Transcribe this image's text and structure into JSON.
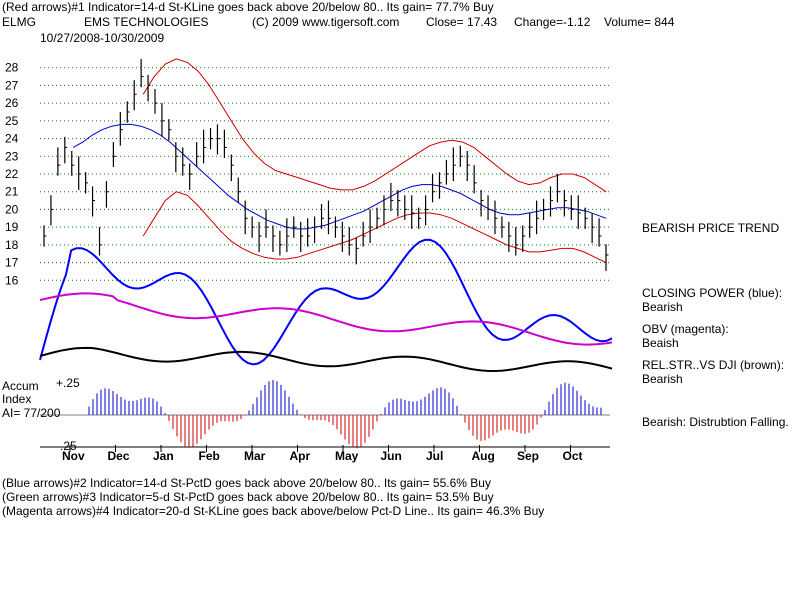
{
  "header": {
    "line1_red": "(Red arrows)#1 Indicator=14-d St-KLine goes back above 20/below 80.. Its gain= 77.7% Buy",
    "symbol": "ELMG",
    "company": "EMS TECHNOLOGIES",
    "copyright": "(C) 2009 www.tigersoft.com",
    "close": "Close=  17.43",
    "change": "Change=-1.12",
    "volume": "Volume= 844",
    "date_range": "10/27/2008-10/30/2009"
  },
  "legend_right": {
    "trend": "BEARISH PRICE TREND",
    "closing_power_label": "CLOSING POWER (blue):",
    "closing_power_value": "Bearish",
    "obv_label": "OBV (magenta):",
    "obv_value": "Beaish",
    "relstr_label": "REL.STR..VS DJI (brown):",
    "relstr_value": "Bearish",
    "accum_note": "Bearish:  Distrubtion Falling."
  },
  "accum_panel": {
    "label_line1": "Accum",
    "label_line2": "Index",
    "ai_value": "AI= 77/200",
    "top_tick": "+.25",
    "bottom_tick": "-.25"
  },
  "footer": {
    "blue_arrows": "(Blue arrows)#2 Indicator=14-d St-PctD goes back above 20/below 80.. Its gain= 55.6% Buy",
    "green_arrows": "(Green arrows)#3 Indicator=5-d St-PctD goes back above 20/below 80.. Its gain= 53.5% Buy",
    "magenta_arrows": "(Magenta arrows)#4 Indicator=20-d St-KLine goes back above/below Pct-D Line.. Its gain= 46.3% Buy"
  },
  "colors": {
    "price": "#000000",
    "bands": "#cc0000",
    "ma": "#0000cc",
    "closing_power": "#0000ff",
    "obv": "#cc00cc",
    "relstr": "#000000",
    "grid": "#008000",
    "accum_pos": "#0000cc",
    "accum_neg": "#cc0000"
  },
  "chart_data": {
    "type": "line",
    "y_ticks": [
      28,
      27,
      26,
      25,
      24,
      23,
      22,
      21,
      20,
      19,
      18,
      17,
      16
    ],
    "x_ticks": [
      "Nov",
      "Dec",
      "Jan",
      "Feb",
      "Mar",
      "Apr",
      "May",
      "Jun",
      "Jul",
      "Aug",
      "Sep",
      "Oct"
    ],
    "ylim": [
      15,
      29
    ],
    "grid": true,
    "series": [
      {
        "values": [
          18.5,
          20,
          22.5,
          23.5,
          22.5,
          22,
          21.5,
          20.5,
          18,
          21,
          23,
          24.5,
          25.5,
          26.5,
          27.5,
          27,
          26,
          25,
          24.5,
          23,
          22.5,
          22,
          23,
          23.5,
          24,
          24,
          23.5,
          22.5,
          21,
          19.5,
          19,
          18.5,
          19,
          18.5,
          18,
          18.5,
          19,
          18.5,
          18.5,
          19,
          19.5,
          19.5,
          19,
          18.5,
          18,
          17.8,
          18.5,
          19,
          19.5,
          20,
          20.5,
          20.5,
          20,
          19.8,
          19.5,
          20,
          21,
          21.5,
          22,
          22.5,
          23,
          22.5,
          21.5,
          20.5,
          20,
          19.5,
          19,
          18.5,
          18,
          18.5,
          19,
          19.5,
          20,
          20.5,
          21,
          20.5,
          20,
          19.8,
          19.5,
          19,
          18.5,
          17.43
        ]
      },
      {
        "values": [
          null,
          null,
          null,
          23.5,
          23.8,
          24.2,
          24.5,
          24.7,
          24.8,
          24.8,
          24.7,
          24.5,
          24.2,
          23.8,
          23.3,
          22.8,
          22.3,
          21.8,
          21.3,
          20.8,
          20.4,
          20.0,
          19.7,
          19.4,
          19.2,
          19.0,
          18.9,
          18.9,
          19.0,
          19.1,
          19.3,
          19.5,
          19.7,
          19.9,
          20.2,
          20.5,
          20.8,
          21.1,
          21.3,
          21.4,
          21.4,
          21.3,
          21.1,
          20.9,
          20.6,
          20.3,
          20.0,
          19.8,
          19.7,
          19.7,
          19.8,
          19.9,
          20.0,
          20.1,
          20.1,
          20.0,
          19.9,
          19.7,
          19.5
        ]
      },
      {
        "values": [
          null,
          null,
          null,
          null,
          null,
          null,
          null,
          null,
          null,
          26.5,
          27.5,
          28.2,
          28.5,
          28.3,
          27.8,
          27.0,
          26.0,
          25.0,
          24.0,
          23.2,
          22.6,
          22.2,
          22.0,
          21.8,
          21.6,
          21.4,
          21.2,
          21.1,
          21.1,
          21.3,
          21.6,
          22.0,
          22.4,
          22.8,
          23.2,
          23.6,
          23.8,
          23.9,
          23.8,
          23.5,
          23.0,
          22.5,
          22.0,
          21.6,
          21.4,
          21.5,
          21.8,
          22.0,
          22.0,
          21.8,
          21.4,
          21.0
        ]
      },
      {
        "values": [
          null,
          null,
          null,
          null,
          null,
          null,
          null,
          null,
          null,
          18.5,
          19.5,
          20.5,
          21.0,
          20.8,
          20.2,
          19.5,
          18.8,
          18.2,
          17.8,
          17.5,
          17.3,
          17.2,
          17.2,
          17.3,
          17.5,
          17.7,
          17.9,
          18.1,
          18.3,
          18.6,
          18.9,
          19.2,
          19.5,
          19.7,
          19.8,
          19.8,
          19.7,
          19.5,
          19.2,
          18.9,
          18.6,
          18.3,
          18.0,
          17.8,
          17.6,
          17.6,
          17.7,
          17.8,
          17.8,
          17.6,
          17.3,
          17.0
        ]
      }
    ]
  }
}
